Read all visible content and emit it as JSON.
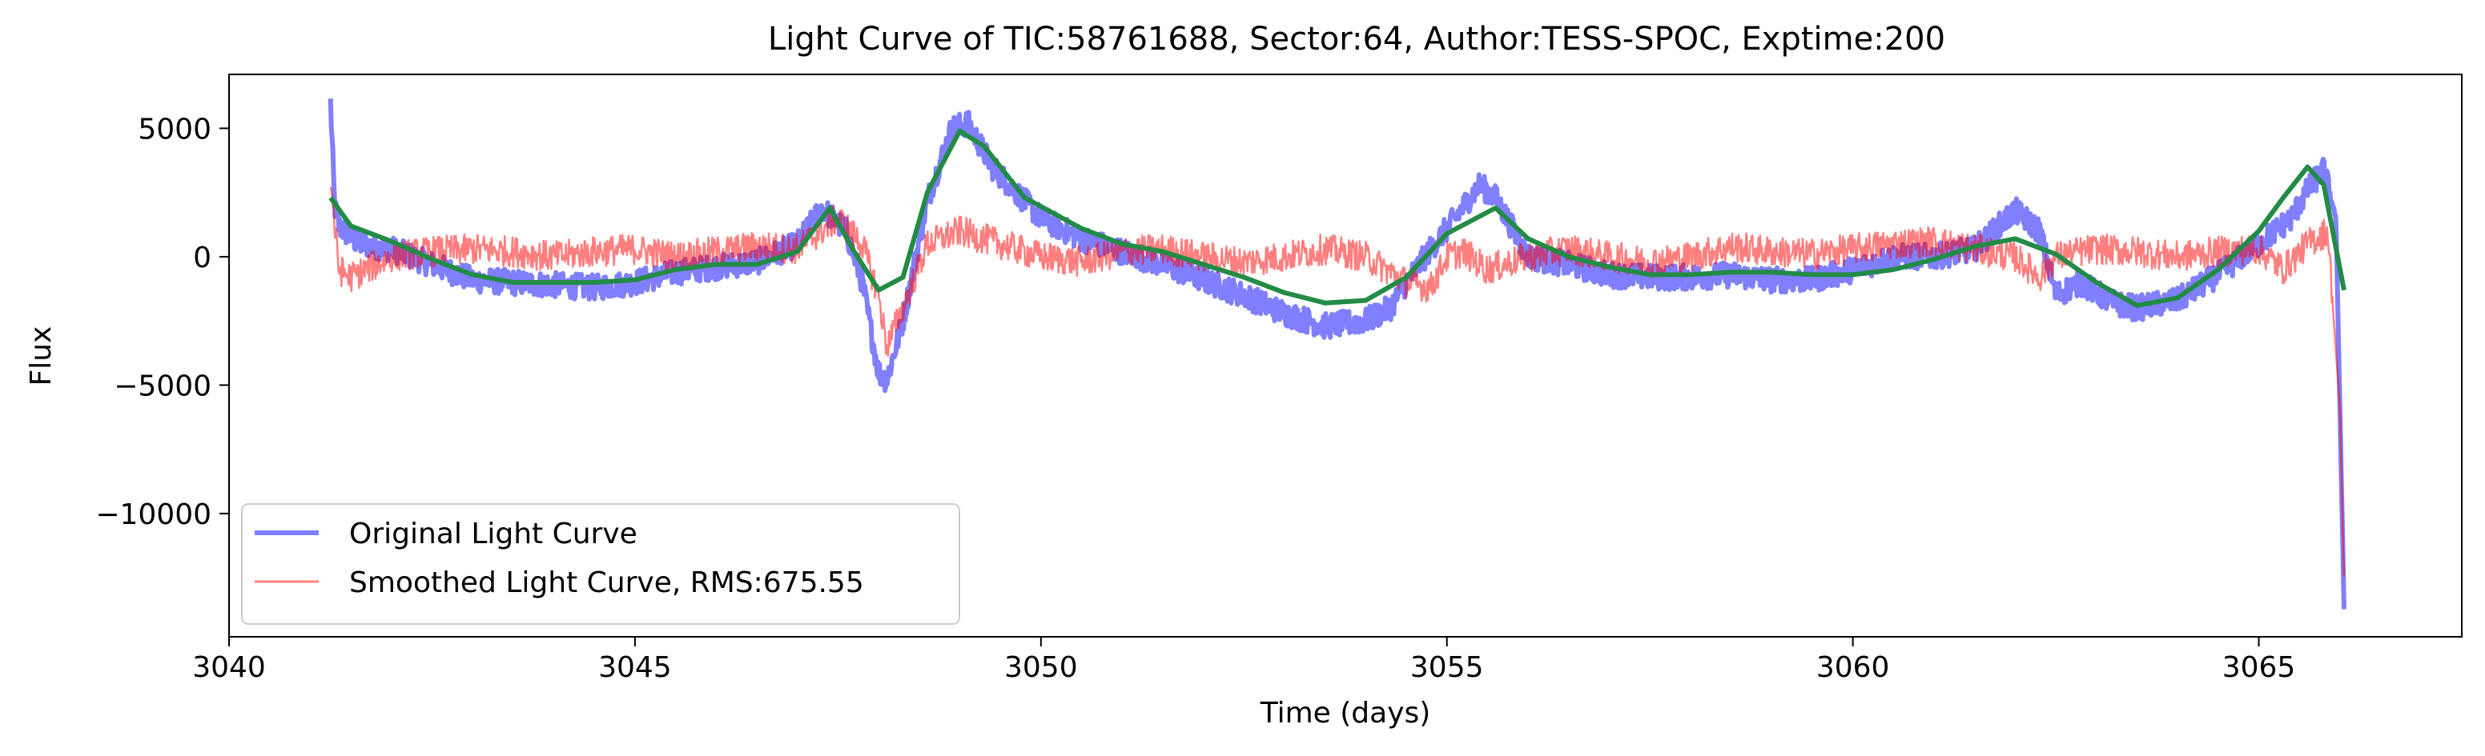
{
  "chart_data": {
    "type": "line",
    "title": "Light Curve of TIC:58761688, Sector:64, Author:TESS-SPOC, Exptime:200",
    "xlabel": "Time (days)",
    "ylabel": "Flux",
    "xlim": [
      3040,
      3067.5
    ],
    "ylim": [
      -14800,
      7100
    ],
    "xticks": [
      3040,
      3045,
      3050,
      3055,
      3060,
      3065
    ],
    "xtick_labels": [
      "3040",
      "3045",
      "3050",
      "3055",
      "3060",
      "3065"
    ],
    "yticks": [
      5000,
      0,
      -5000,
      -10000
    ],
    "ytick_labels": [
      "5000",
      "0",
      "−5000",
      "−10000"
    ],
    "grid": false,
    "legend_position": "lower-left",
    "series": [
      {
        "name": "Original Light Curve",
        "color": "#0000ff",
        "alpha": 0.5,
        "line_width_class": "thick",
        "noise_amplitude": 500,
        "x": [
          3041.25,
          3041.3,
          3041.35,
          3041.45,
          3041.6,
          3042.0,
          3042.5,
          3043.0,
          3043.5,
          3044.0,
          3044.5,
          3045.0,
          3045.5,
          3046.0,
          3046.5,
          3047.0,
          3047.3,
          3047.6,
          3047.8,
          3048.0,
          3048.1,
          3048.3,
          3048.6,
          3048.9,
          3049.1,
          3049.4,
          3050.0,
          3050.5,
          3051.0,
          3051.5,
          3052.0,
          3052.5,
          3053.0,
          3053.5,
          3054.0,
          3054.3,
          3054.5,
          3054.8,
          3055.1,
          3055.4,
          3055.6,
          3056.0,
          3056.5,
          3057.0,
          3057.5,
          3058.0,
          3058.5,
          3059.0,
          3059.5,
          3060.0,
          3060.5,
          3061.0,
          3061.5,
          3062.0,
          3062.3,
          3062.5,
          3062.8,
          3063.2,
          3063.5,
          3064.0,
          3064.5,
          3065.0,
          3065.4,
          3065.6,
          3065.8,
          3065.95,
          3066.0,
          3066.05
        ],
        "y": [
          6000,
          2000,
          1200,
          900,
          500,
          300,
          -300,
          -900,
          -1000,
          -1100,
          -1200,
          -1000,
          -600,
          -400,
          -200,
          500,
          1900,
          1000,
          -1000,
          -4500,
          -4800,
          -2500,
          2200,
          5000,
          5200,
          3500,
          1500,
          700,
          200,
          -300,
          -900,
          -1500,
          -2200,
          -2700,
          -2500,
          -2000,
          -1000,
          300,
          1500,
          2800,
          2300,
          0,
          -300,
          -700,
          -800,
          -800,
          -700,
          -900,
          -900,
          -500,
          0,
          0,
          300,
          1800,
          1000,
          -1500,
          -1000,
          -1800,
          -2000,
          -1700,
          -700,
          500,
          1500,
          2600,
          3400,
          1500,
          -6000,
          -13700
        ]
      },
      {
        "name": "Smoothed Light Curve, RMS:675.55",
        "color": "#ff0000",
        "alpha": 0.5,
        "line_width_class": "thin",
        "noise_amplitude": 600,
        "x": [
          3041.25,
          3041.35,
          3041.5,
          3042.0,
          3042.5,
          3043.0,
          3043.5,
          3044.0,
          3044.5,
          3045.0,
          3045.5,
          3046.0,
          3046.5,
          3047.0,
          3047.5,
          3047.8,
          3048.0,
          3048.1,
          3048.3,
          3048.6,
          3049.0,
          3049.5,
          3050.0,
          3050.5,
          3051.0,
          3051.5,
          3052.0,
          3052.5,
          3053.0,
          3053.5,
          3054.0,
          3054.5,
          3054.8,
          3055.0,
          3055.2,
          3055.5,
          3056.0,
          3056.5,
          3057.0,
          3057.5,
          3058.0,
          3058.5,
          3059.0,
          3059.5,
          3060.0,
          3060.5,
          3061.0,
          3061.5,
          3062.0,
          3062.3,
          3062.5,
          3062.8,
          3063.0,
          3063.5,
          3064.0,
          3064.5,
          3065.0,
          3065.3,
          3065.6,
          3065.85,
          3066.0,
          3066.05
        ],
        "y": [
          3000,
          -500,
          -800,
          0,
          200,
          300,
          200,
          0,
          200,
          300,
          0,
          200,
          400,
          300,
          1500,
          500,
          -1500,
          -3500,
          -2000,
          500,
          1000,
          500,
          0,
          -200,
          200,
          300,
          0,
          -200,
          0,
          300,
          0,
          -1000,
          -1200,
          0,
          200,
          -500,
          0,
          300,
          0,
          -200,
          0,
          400,
          200,
          100,
          300,
          500,
          600,
          300,
          0,
          -800,
          0,
          200,
          300,
          200,
          0,
          200,
          300,
          -500,
          500,
          1000,
          -6000,
          -12500
        ]
      },
      {
        "name": "",
        "color": "#228b45",
        "alpha": 1.0,
        "line_width_class": "thick",
        "noise_amplitude": 0,
        "x": [
          3041.25,
          3041.5,
          3042.0,
          3042.5,
          3043.0,
          3043.5,
          3044.0,
          3044.5,
          3045.0,
          3045.5,
          3046.0,
          3046.5,
          3047.0,
          3047.4,
          3047.7,
          3048.0,
          3048.3,
          3048.6,
          3049.0,
          3049.3,
          3049.8,
          3050.5,
          3051.0,
          3051.5,
          3052.0,
          3052.5,
          3053.0,
          3053.5,
          3054.0,
          3054.5,
          3055.0,
          3055.6,
          3056.0,
          3056.5,
          3057.0,
          3057.5,
          3058.0,
          3058.5,
          3059.0,
          3059.5,
          3060.0,
          3060.5,
          3061.0,
          3061.5,
          3062.0,
          3062.5,
          3063.0,
          3063.5,
          3064.0,
          3064.5,
          3065.0,
          3065.3,
          3065.6,
          3065.8,
          3066.05
        ],
        "y": [
          2300,
          1200,
          600,
          -100,
          -700,
          -1000,
          -1000,
          -1000,
          -900,
          -500,
          -300,
          -300,
          200,
          1900,
          200,
          -1300,
          -800,
          2500,
          4900,
          4300,
          2300,
          1100,
          500,
          200,
          -300,
          -800,
          -1400,
          -1800,
          -1700,
          -800,
          900,
          1900,
          700,
          0,
          -400,
          -700,
          -700,
          -600,
          -600,
          -700,
          -700,
          -500,
          -100,
          400,
          700,
          100,
          -1000,
          -1900,
          -1600,
          -500,
          1000,
          2300,
          3500,
          2800,
          -1300
        ]
      }
    ]
  }
}
